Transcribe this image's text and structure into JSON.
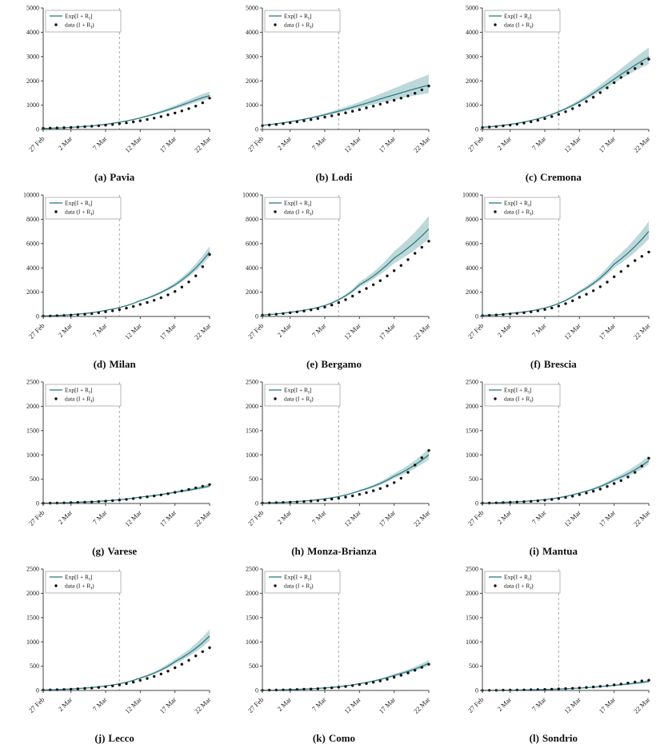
{
  "figure": {
    "accent_color": "#2e7d84",
    "band_color": "#6fa8ad",
    "dot_color": "#111111",
    "vline_color": "#aaaaaa",
    "axis_color": "#444444",
    "legend": {
      "line_label": "Exp[I + R_I]",
      "dot_label": "data (I + R_I)"
    },
    "x_tick_labels": [
      "27 Feb",
      "2 Mar",
      "7 Mar",
      "12 Mar",
      "17 Mar",
      "22 Mar"
    ],
    "x_tick_days": [
      0,
      4,
      9,
      14,
      19,
      24
    ],
    "x_range": [
      0,
      24
    ],
    "x_days": [
      0,
      1,
      2,
      3,
      4,
      5,
      6,
      7,
      8,
      9,
      10,
      11,
      12,
      13,
      14,
      15,
      16,
      17,
      18,
      19,
      20,
      21,
      22,
      23,
      24
    ],
    "vline_day": 11
  },
  "chart_data": [
    {
      "id": "a",
      "type": "line",
      "caption_letter": "(a)",
      "title": "Pavia",
      "ylim": [
        0,
        5000
      ],
      "yticks": [
        0,
        1000,
        2000,
        3000,
        4000,
        5000
      ],
      "band_spread": 0.12,
      "series": [
        {
          "name": "Exp[I + R_I]",
          "role": "model_mean",
          "values": [
            40,
            48,
            58,
            70,
            85,
            103,
            124,
            149,
            178,
            212,
            252,
            298,
            350,
            409,
            475,
            548,
            628,
            714,
            806,
            903,
            1004,
            1108,
            1214,
            1311,
            1390
          ]
        },
        {
          "name": "data (I + R_I)",
          "role": "observations",
          "values": [
            50,
            55,
            62,
            72,
            84,
            98,
            114,
            132,
            153,
            177,
            205,
            237,
            273,
            314,
            360,
            411,
            468,
            531,
            601,
            678,
            763,
            857,
            960,
            1100,
            1290
          ]
        }
      ]
    },
    {
      "id": "b",
      "type": "line",
      "caption_letter": "(b)",
      "title": "Lodi",
      "ylim": [
        0,
        5000
      ],
      "yticks": [
        0,
        1000,
        2000,
        3000,
        4000,
        5000
      ],
      "band_spread": 0.24,
      "series": [
        {
          "name": "Exp[I + R_I]",
          "role": "model_mean",
          "values": [
            170,
            200,
            235,
            274,
            318,
            366,
            419,
            477,
            539,
            606,
            677,
            752,
            830,
            911,
            994,
            1079,
            1165,
            1252,
            1339,
            1425,
            1510,
            1593,
            1673,
            1750,
            1823
          ]
        },
        {
          "name": "data (I + R_I)",
          "role": "observations",
          "values": [
            155,
            180,
            208,
            240,
            276,
            315,
            358,
            404,
            454,
            507,
            563,
            622,
            684,
            749,
            817,
            888,
            962,
            1039,
            1119,
            1202,
            1288,
            1377,
            1490,
            1630,
            1790
          ]
        }
      ]
    },
    {
      "id": "c",
      "type": "line",
      "caption_letter": "(c)",
      "title": "Cremona",
      "ylim": [
        0,
        5000
      ],
      "yticks": [
        0,
        1000,
        2000,
        3000,
        4000,
        5000
      ],
      "band_spread": 0.13,
      "series": [
        {
          "name": "Exp[I + R_I]",
          "role": "model_mean",
          "values": [
            90,
            112,
            139,
            171,
            209,
            254,
            307,
            369,
            441,
            524,
            619,
            727,
            849,
            986,
            1139,
            1308,
            1490,
            1680,
            1875,
            2070,
            2265,
            2455,
            2640,
            2815,
            2980
          ]
        },
        {
          "name": "data (I + R_I)",
          "role": "observations",
          "values": [
            80,
            98,
            120,
            147,
            179,
            217,
            262,
            315,
            376,
            447,
            529,
            623,
            731,
            854,
            993,
            1150,
            1325,
            1515,
            1715,
            1925,
            2140,
            2330,
            2510,
            2700,
            2890
          ]
        }
      ]
    },
    {
      "id": "d",
      "type": "line",
      "caption_letter": "(d)",
      "title": "Milan",
      "ylim": [
        0,
        10000
      ],
      "yticks": [
        0,
        2000,
        4000,
        6000,
        8000,
        10000
      ],
      "band_spread": 0.09,
      "series": [
        {
          "name": "Exp[I + R_I]",
          "role": "model_mean",
          "values": [
            40,
            55,
            76,
            106,
            150,
            190,
            242,
            308,
            392,
            500,
            605,
            732,
            886,
            1073,
            1300,
            1494,
            1717,
            1973,
            2267,
            2600,
            3000,
            3460,
            3990,
            4600,
            5300
          ]
        },
        {
          "name": "data (I + R_I)",
          "role": "observations",
          "values": [
            30,
            42,
            58,
            81,
            112,
            145,
            186,
            238,
            305,
            390,
            470,
            567,
            684,
            825,
            995,
            1150,
            1330,
            1540,
            1780,
            2060,
            2420,
            2840,
            3340,
            4100,
            5100
          ]
        }
      ]
    },
    {
      "id": "e",
      "type": "line",
      "caption_letter": "(e)",
      "title": "Bergamo",
      "ylim": [
        0,
        10000
      ],
      "yticks": [
        0,
        2000,
        4000,
        6000,
        8000,
        10000
      ],
      "band_spread": 0.15,
      "series": [
        {
          "name": "Exp[I + R_I]",
          "role": "model_mean",
          "values": [
            120,
            157,
            205,
            268,
            350,
            423,
            512,
            620,
            745,
            900,
            1112,
            1375,
            1700,
            2100,
            2600,
            2940,
            3320,
            3760,
            4250,
            4800,
            5200,
            5640,
            6110,
            6630,
            7200
          ]
        },
        {
          "name": "data (I + R_I)",
          "role": "observations",
          "values": [
            110,
            143,
            186,
            240,
            310,
            372,
            448,
            538,
            645,
            770,
            940,
            1140,
            1380,
            1670,
            2020,
            2300,
            2610,
            2950,
            3340,
            3770,
            4200,
            4680,
            5200,
            5700,
            6200
          ]
        }
      ]
    },
    {
      "id": "f",
      "type": "line",
      "caption_letter": "(f)",
      "title": "Brescia",
      "ylim": [
        0,
        10000
      ],
      "yticks": [
        0,
        2000,
        4000,
        6000,
        8000,
        10000
      ],
      "band_spread": 0.12,
      "series": [
        {
          "name": "Exp[I + R_I]",
          "role": "model_mean",
          "values": [
            80,
            106,
            141,
            188,
            250,
            307,
            377,
            463,
            569,
            700,
            864,
            1066,
            1315,
            1622,
            2000,
            2330,
            2715,
            3165,
            3690,
            4300,
            4740,
            5220,
            5760,
            6350,
            7000
          ]
        },
        {
          "name": "data (I + R_I)",
          "role": "observations",
          "values": [
            70,
            92,
            120,
            158,
            208,
            254,
            310,
            380,
            465,
            570,
            700,
            860,
            1050,
            1290,
            1580,
            1830,
            2120,
            2450,
            2830,
            3270,
            3700,
            4160,
            4600,
            4950,
            5300
          ]
        }
      ]
    },
    {
      "id": "g",
      "type": "line",
      "caption_letter": "(g)",
      "title": "Varese",
      "ylim": [
        0,
        2500
      ],
      "yticks": [
        0,
        500,
        1000,
        1500,
        2000,
        2500
      ],
      "band_spread": 0.12,
      "series": [
        {
          "name": "Exp[I + R_I]",
          "role": "model_mean",
          "values": [
            6,
            8,
            11,
            15,
            20,
            25,
            30,
            37,
            45,
            55,
            65,
            78,
            92,
            110,
            130,
            146,
            163,
            183,
            205,
            230,
            252,
            275,
            301,
            329,
            360
          ]
        },
        {
          "name": "data (I + R_I)",
          "role": "observations",
          "values": [
            5,
            7,
            9,
            12,
            16,
            21,
            26,
            32,
            39,
            48,
            58,
            70,
            84,
            100,
            119,
            136,
            155,
            176,
            200,
            228,
            258,
            290,
            322,
            356,
            390
          ]
        }
      ]
    },
    {
      "id": "h",
      "type": "line",
      "caption_letter": "(h)",
      "title": "Monza-Brianza",
      "ylim": [
        0,
        2500
      ],
      "yticks": [
        0,
        500,
        1000,
        1500,
        2000,
        2500
      ],
      "band_spread": 0.13,
      "series": [
        {
          "name": "Exp[I + R_I]",
          "role": "model_mean",
          "values": [
            10,
            14,
            18,
            25,
            33,
            41,
            50,
            62,
            77,
            95,
            116,
            142,
            174,
            213,
            260,
            303,
            353,
            412,
            480,
            560,
            629,
            706,
            793,
            891,
            1000
          ]
        },
        {
          "name": "data (I + R_I)",
          "role": "observations",
          "values": [
            8,
            11,
            15,
            20,
            26,
            32,
            40,
            49,
            60,
            74,
            90,
            109,
            131,
            157,
            188,
            222,
            262,
            308,
            362,
            430,
            520,
            640,
            790,
            940,
            1090
          ]
        }
      ]
    },
    {
      "id": "i",
      "type": "line",
      "caption_letter": "(i)",
      "title": "Mantua",
      "ylim": [
        0,
        2500
      ],
      "yticks": [
        0,
        500,
        1000,
        1500,
        2000,
        2500
      ],
      "band_spread": 0.12,
      "series": [
        {
          "name": "Exp[I + R_I]",
          "role": "model_mean",
          "values": [
            8,
            11,
            15,
            21,
            28,
            34,
            42,
            53,
            65,
            80,
            97,
            119,
            145,
            176,
            215,
            252,
            296,
            348,
            409,
            480,
            542,
            612,
            690,
            780,
            880
          ]
        },
        {
          "name": "data (I + R_I)",
          "role": "observations",
          "values": [
            7,
            9,
            12,
            17,
            23,
            29,
            36,
            44,
            55,
            68,
            83,
            101,
            123,
            150,
            183,
            215,
            252,
            296,
            348,
            410,
            470,
            545,
            640,
            770,
            930
          ]
        }
      ]
    },
    {
      "id": "j",
      "type": "line",
      "caption_letter": "(j)",
      "title": "Lecco",
      "ylim": [
        0,
        2500
      ],
      "yticks": [
        0,
        500,
        1000,
        1500,
        2000,
        2500
      ],
      "band_spread": 0.12,
      "series": [
        {
          "name": "Exp[I + R_I]",
          "role": "model_mean",
          "values": [
            9,
            13,
            17,
            24,
            32,
            40,
            49,
            60,
            75,
            92,
            113,
            138,
            170,
            208,
            255,
            302,
            357,
            422,
            499,
            590,
            671,
            763,
            867,
            986,
            1120
          ]
        },
        {
          "name": "data (I + R_I)",
          "role": "observations",
          "values": [
            8,
            11,
            14,
            19,
            26,
            33,
            41,
            50,
            62,
            77,
            94,
            115,
            140,
            171,
            209,
            246,
            289,
            339,
            398,
            467,
            540,
            622,
            712,
            800,
            880
          ]
        }
      ]
    },
    {
      "id": "k",
      "type": "line",
      "caption_letter": "(k)",
      "title": "Como",
      "ylim": [
        0,
        2500
      ],
      "yticks": [
        0,
        500,
        1000,
        1500,
        2000,
        2500
      ],
      "band_spread": 0.12,
      "series": [
        {
          "name": "Exp[I + R_I]",
          "role": "model_mean",
          "values": [
            5,
            7,
            9,
            13,
            18,
            22,
            28,
            35,
            43,
            52,
            63,
            77,
            94,
            115,
            140,
            164,
            192,
            226,
            264,
            310,
            349,
            392,
            441,
            497,
            560
          ]
        },
        {
          "name": "data (I + R_I)",
          "role": "observations",
          "values": [
            4,
            6,
            8,
            11,
            15,
            19,
            24,
            30,
            37,
            45,
            55,
            67,
            82,
            100,
            122,
            143,
            168,
            197,
            231,
            271,
            312,
            360,
            415,
            475,
            540
          ]
        }
      ]
    },
    {
      "id": "l",
      "type": "line",
      "caption_letter": "(l)",
      "title": "Sondrio",
      "ylim": [
        0,
        2500
      ],
      "yticks": [
        0,
        500,
        1000,
        1500,
        2000,
        2500
      ],
      "band_spread": 0.18,
      "series": [
        {
          "name": "Exp[I + R_I]",
          "role": "model_mean",
          "values": [
            2,
            3,
            4,
            5,
            7,
            9,
            11,
            14,
            17,
            20,
            24,
            29,
            35,
            42,
            50,
            58,
            68,
            79,
            91,
            105,
            118,
            132,
            148,
            165,
            185
          ]
        },
        {
          "name": "data (I + R_I)",
          "role": "observations",
          "values": [
            2,
            3,
            4,
            6,
            8,
            10,
            12,
            15,
            18,
            22,
            27,
            32,
            38,
            45,
            53,
            62,
            73,
            85,
            99,
            115,
            133,
            153,
            175,
            196,
            210
          ]
        }
      ]
    }
  ]
}
